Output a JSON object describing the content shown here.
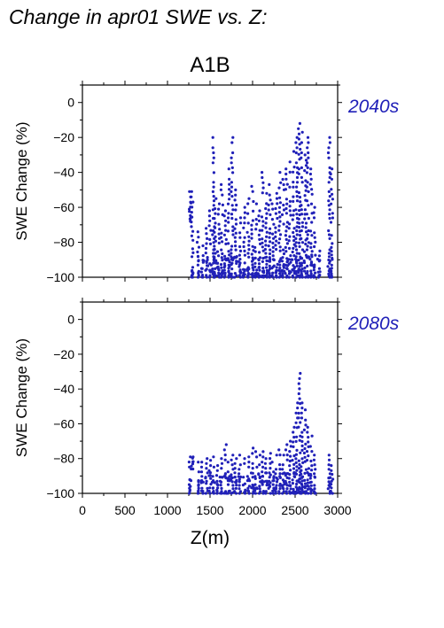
{
  "page_title": "Change in apr01 SWE vs. Z:",
  "scenario": "A1B",
  "accent_color": "#2020b8",
  "chart_data": [
    {
      "type": "scatter",
      "panel_label": "2040s",
      "xlabel": "Z(m)",
      "ylabel": "SWE Change (%)",
      "xlim": [
        0,
        3000
      ],
      "ylim": [
        -100,
        10
      ],
      "xticks": [
        0,
        500,
        1000,
        1500,
        2000,
        2500,
        3000
      ],
      "yticks": [
        0,
        -20,
        -40,
        -60,
        -80,
        -100
      ],
      "x_tick_labels_shown": false,
      "grid": false,
      "columns": [
        {
          "x": 1265,
          "ymin": -68,
          "ymax": -51
        },
        {
          "x": 1290,
          "ymin": -100,
          "ymax": -51
        },
        {
          "x": 1360,
          "ymin": -100,
          "ymax": -74
        },
        {
          "x": 1410,
          "ymin": -100,
          "ymax": -82
        },
        {
          "x": 1460,
          "ymin": -100,
          "ymax": -72
        },
        {
          "x": 1500,
          "ymin": -100,
          "ymax": -62
        },
        {
          "x": 1540,
          "ymin": -100,
          "ymax": -20
        },
        {
          "x": 1560,
          "ymin": -100,
          "ymax": -55
        },
        {
          "x": 1600,
          "ymin": -100,
          "ymax": -58
        },
        {
          "x": 1640,
          "ymin": -100,
          "ymax": -47
        },
        {
          "x": 1680,
          "ymin": -100,
          "ymax": -62
        },
        {
          "x": 1720,
          "ymin": -100,
          "ymax": -38
        },
        {
          "x": 1760,
          "ymin": -100,
          "ymax": -20
        },
        {
          "x": 1800,
          "ymin": -100,
          "ymax": -50
        },
        {
          "x": 1850,
          "ymin": -100,
          "ymax": -66
        },
        {
          "x": 1900,
          "ymin": -100,
          "ymax": -60
        },
        {
          "x": 1950,
          "ymin": -100,
          "ymax": -55
        },
        {
          "x": 2000,
          "ymin": -100,
          "ymax": -48
        },
        {
          "x": 2040,
          "ymin": -100,
          "ymax": -58
        },
        {
          "x": 2080,
          "ymin": -100,
          "ymax": -62
        },
        {
          "x": 2120,
          "ymin": -100,
          "ymax": -40
        },
        {
          "x": 2160,
          "ymin": -100,
          "ymax": -52
        },
        {
          "x": 2200,
          "ymin": -100,
          "ymax": -47
        },
        {
          "x": 2240,
          "ymin": -100,
          "ymax": -58
        },
        {
          "x": 2280,
          "ymin": -100,
          "ymax": -52
        },
        {
          "x": 2320,
          "ymin": -100,
          "ymax": -40
        },
        {
          "x": 2360,
          "ymin": -100,
          "ymax": -44
        },
        {
          "x": 2400,
          "ymin": -100,
          "ymax": -38
        },
        {
          "x": 2440,
          "ymin": -100,
          "ymax": -34
        },
        {
          "x": 2480,
          "ymin": -100,
          "ymax": -28
        },
        {
          "x": 2520,
          "ymin": -100,
          "ymax": -20
        },
        {
          "x": 2550,
          "ymin": -100,
          "ymax": -12
        },
        {
          "x": 2580,
          "ymin": -100,
          "ymax": -17
        },
        {
          "x": 2620,
          "ymin": -100,
          "ymax": -30
        },
        {
          "x": 2650,
          "ymin": -100,
          "ymax": -20
        },
        {
          "x": 2690,
          "ymin": -100,
          "ymax": -38
        },
        {
          "x": 2730,
          "ymin": -100,
          "ymax": -60
        },
        {
          "x": 2780,
          "ymin": -100,
          "ymax": -85
        },
        {
          "x": 2900,
          "ymin": -100,
          "ymax": -20
        },
        {
          "x": 2930,
          "ymin": -100,
          "ymax": -38
        }
      ]
    },
    {
      "type": "scatter",
      "panel_label": "2080s",
      "xlabel": "Z(m)",
      "ylabel": "SWE Change (%)",
      "xlim": [
        0,
        3000
      ],
      "ylim": [
        -100,
        10
      ],
      "xticks": [
        0,
        500,
        1000,
        1500,
        2000,
        2500,
        3000
      ],
      "yticks": [
        0,
        -20,
        -40,
        -60,
        -80,
        -100
      ],
      "x_tick_labels_shown": true,
      "grid": false,
      "columns": [
        {
          "x": 1265,
          "ymin": -100,
          "ymax": -79
        },
        {
          "x": 1290,
          "ymin": -86,
          "ymax": -79
        },
        {
          "x": 1360,
          "ymin": -100,
          "ymax": -82
        },
        {
          "x": 1410,
          "ymin": -100,
          "ymax": -82
        },
        {
          "x": 1460,
          "ymin": -100,
          "ymax": -80
        },
        {
          "x": 1500,
          "ymin": -100,
          "ymax": -81
        },
        {
          "x": 1540,
          "ymin": -100,
          "ymax": -79
        },
        {
          "x": 1580,
          "ymin": -100,
          "ymax": -84
        },
        {
          "x": 1630,
          "ymin": -100,
          "ymax": -80
        },
        {
          "x": 1680,
          "ymin": -100,
          "ymax": -72
        },
        {
          "x": 1720,
          "ymin": -100,
          "ymax": -82
        },
        {
          "x": 1760,
          "ymin": -100,
          "ymax": -78
        },
        {
          "x": 1800,
          "ymin": -100,
          "ymax": -80
        },
        {
          "x": 1850,
          "ymin": -100,
          "ymax": -78
        },
        {
          "x": 1900,
          "ymin": -100,
          "ymax": -80
        },
        {
          "x": 1950,
          "ymin": -100,
          "ymax": -79
        },
        {
          "x": 2000,
          "ymin": -100,
          "ymax": -74
        },
        {
          "x": 2040,
          "ymin": -100,
          "ymax": -76
        },
        {
          "x": 2080,
          "ymin": -100,
          "ymax": -78
        },
        {
          "x": 2120,
          "ymin": -100,
          "ymax": -76
        },
        {
          "x": 2160,
          "ymin": -100,
          "ymax": -80
        },
        {
          "x": 2200,
          "ymin": -100,
          "ymax": -77
        },
        {
          "x": 2240,
          "ymin": -100,
          "ymax": -82
        },
        {
          "x": 2280,
          "ymin": -100,
          "ymax": -78
        },
        {
          "x": 2320,
          "ymin": -100,
          "ymax": -75
        },
        {
          "x": 2360,
          "ymin": -100,
          "ymax": -78
        },
        {
          "x": 2400,
          "ymin": -100,
          "ymax": -72
        },
        {
          "x": 2440,
          "ymin": -100,
          "ymax": -70
        },
        {
          "x": 2480,
          "ymin": -100,
          "ymax": -62
        },
        {
          "x": 2520,
          "ymin": -100,
          "ymax": -48
        },
        {
          "x": 2550,
          "ymin": -100,
          "ymax": -31
        },
        {
          "x": 2580,
          "ymin": -100,
          "ymax": -48
        },
        {
          "x": 2620,
          "ymin": -100,
          "ymax": -52
        },
        {
          "x": 2650,
          "ymin": -100,
          "ymax": -62
        },
        {
          "x": 2690,
          "ymin": -100,
          "ymax": -67
        },
        {
          "x": 2730,
          "ymin": -100,
          "ymax": -78
        },
        {
          "x": 2900,
          "ymin": -100,
          "ymax": -78
        },
        {
          "x": 2930,
          "ymin": -100,
          "ymax": -84
        }
      ]
    }
  ]
}
